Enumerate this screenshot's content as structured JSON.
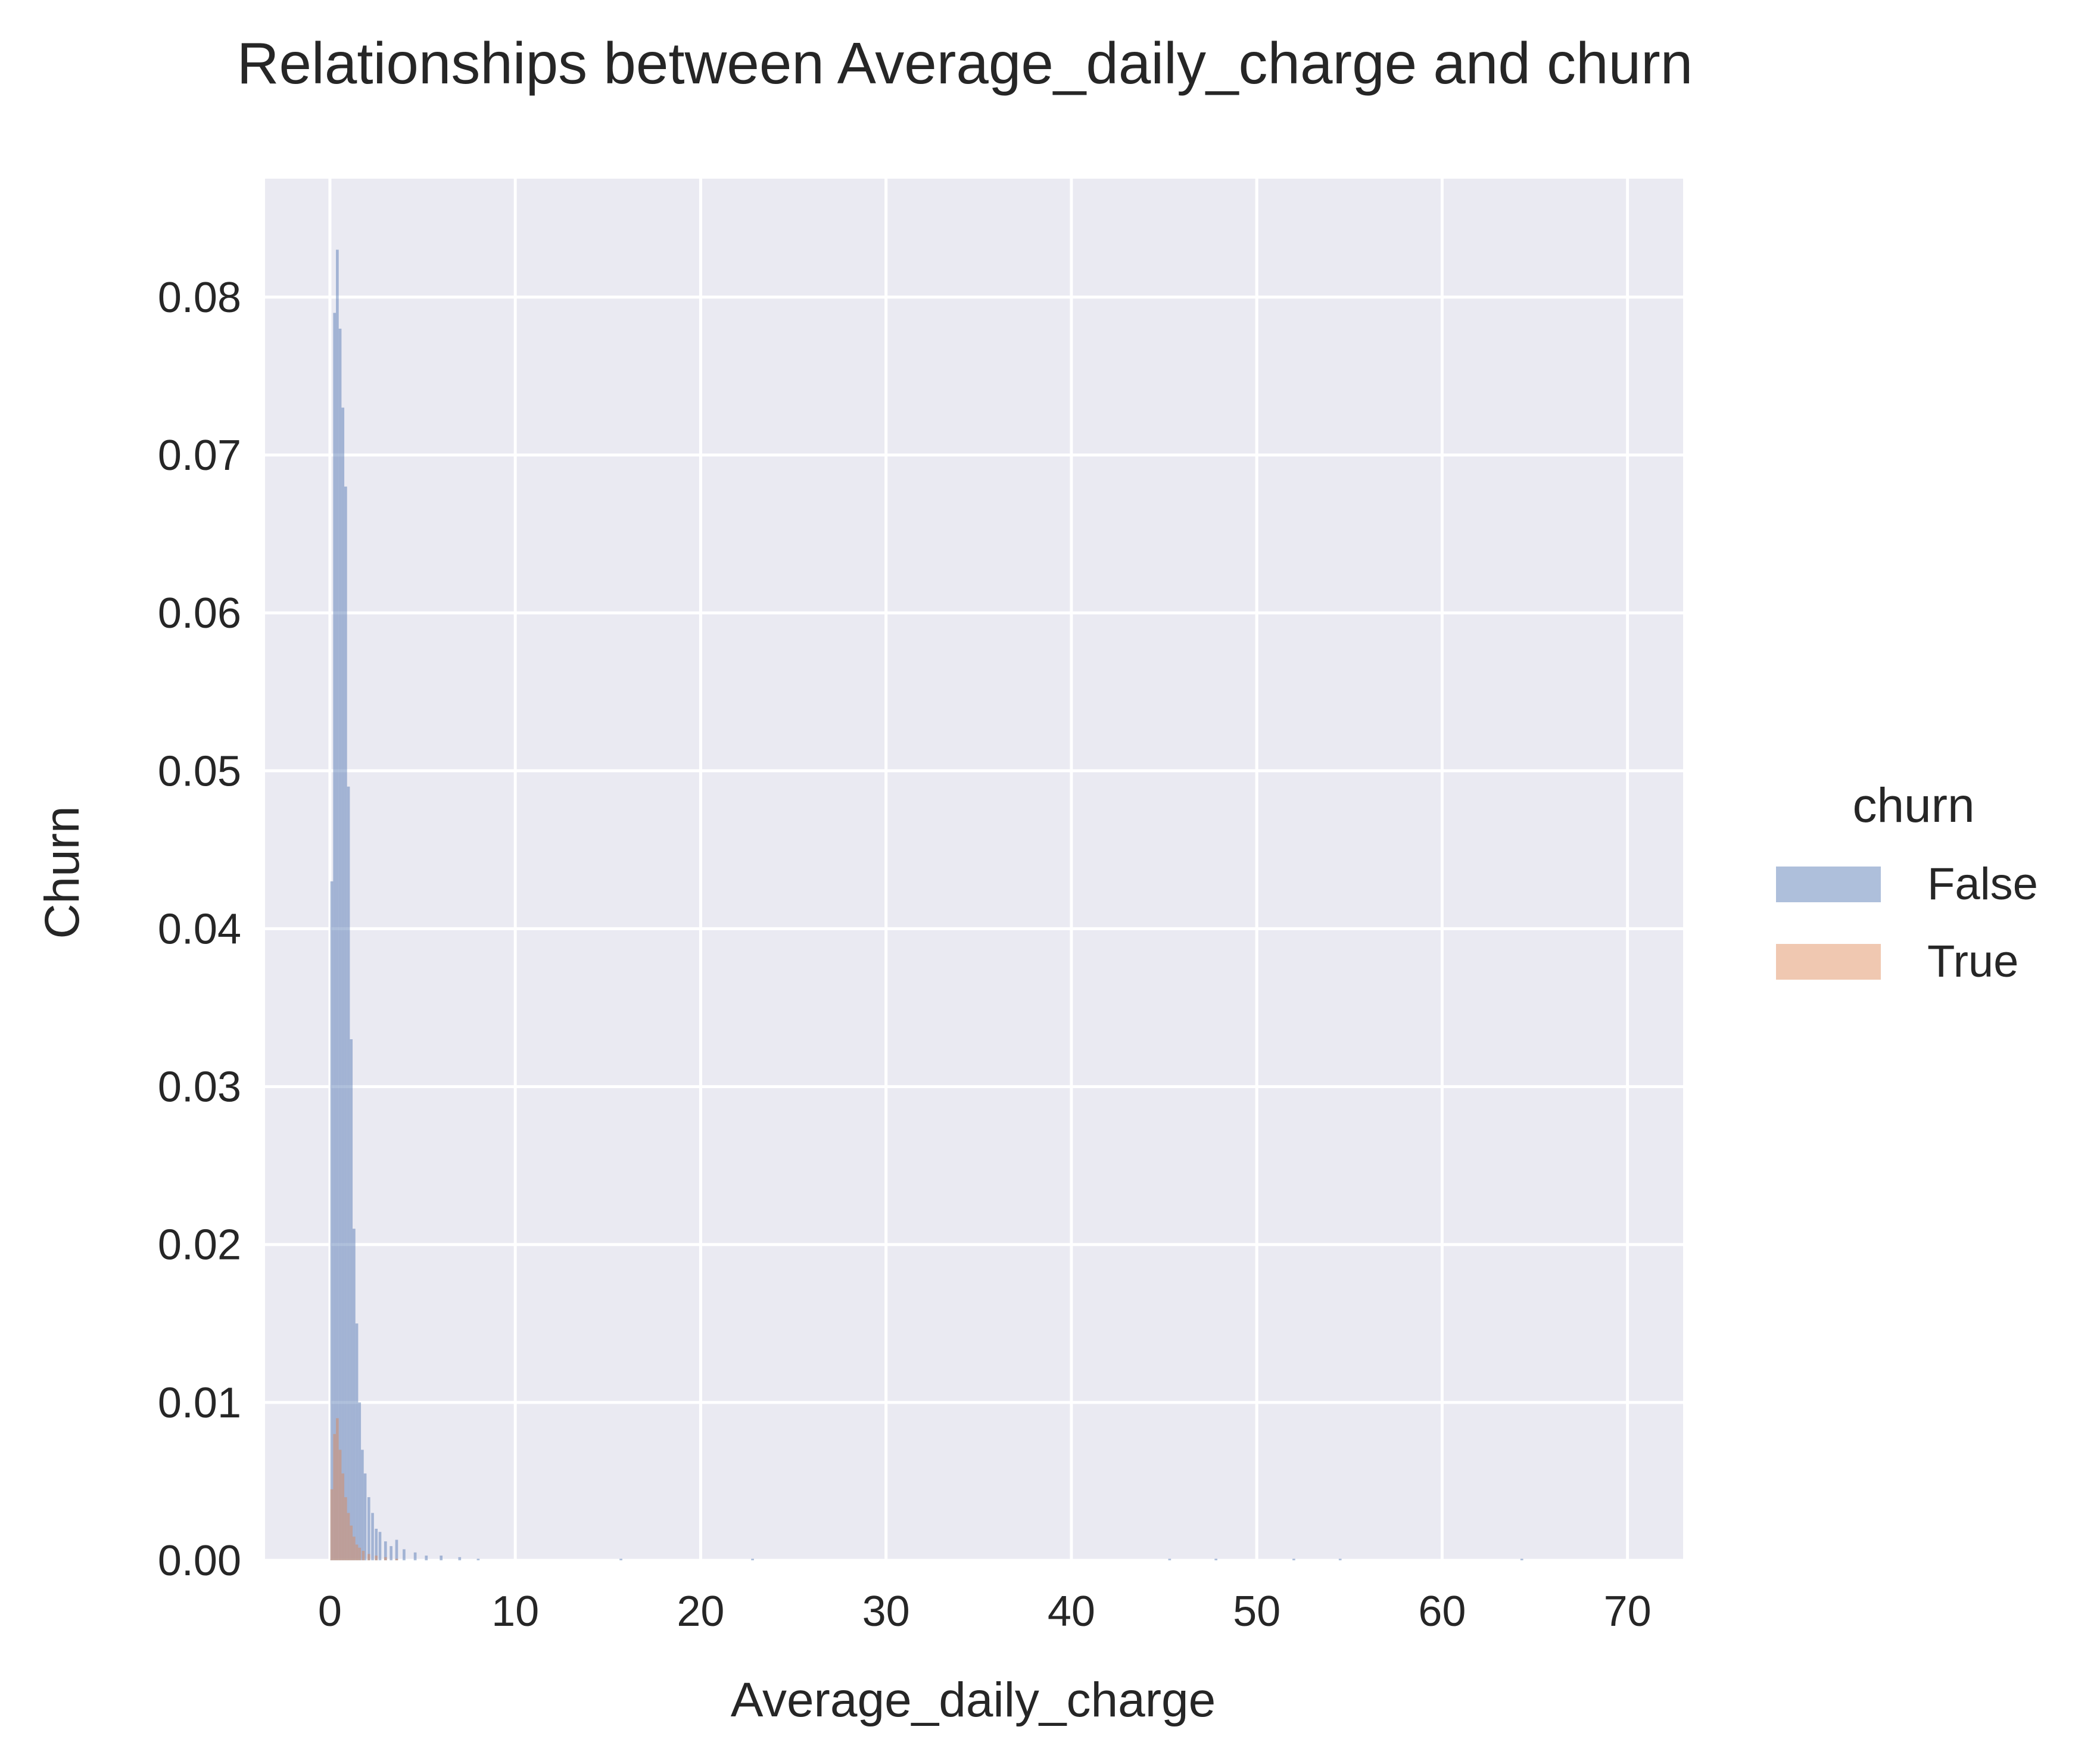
{
  "chart_data": {
    "type": "bar",
    "title": "Relationships between Average_daily_charge and churn",
    "xlabel": "Average_daily_charge",
    "ylabel": "Churn",
    "xlim": [
      -3.5,
      73.0
    ],
    "ylim": [
      0,
      0.0875
    ],
    "xticks": [
      0,
      10,
      20,
      30,
      40,
      50,
      60,
      70
    ],
    "xtick_labels": [
      "0",
      "10",
      "20",
      "30",
      "40",
      "50",
      "60",
      "70"
    ],
    "yticks": [
      0.0,
      0.01,
      0.02,
      0.03,
      0.04,
      0.05,
      0.06,
      0.07,
      0.08
    ],
    "ytick_labels": [
      "0.00",
      "0.01",
      "0.02",
      "0.03",
      "0.04",
      "0.05",
      "0.06",
      "0.07",
      "0.08"
    ],
    "grid": true,
    "legend": {
      "title": "churn",
      "placement": "right"
    },
    "background_color": "#eaeaf2",
    "grid_color": "#ffffff",
    "series": [
      {
        "name": "False",
        "color": "#4c72b0",
        "opacity": 0.45,
        "bins": [
          {
            "x": 0.1,
            "y": 0.043
          },
          {
            "x": 0.25,
            "y": 0.079
          },
          {
            "x": 0.4,
            "y": 0.083
          },
          {
            "x": 0.55,
            "y": 0.078
          },
          {
            "x": 0.7,
            "y": 0.073
          },
          {
            "x": 0.85,
            "y": 0.068
          },
          {
            "x": 1.0,
            "y": 0.049
          },
          {
            "x": 1.15,
            "y": 0.033
          },
          {
            "x": 1.3,
            "y": 0.021
          },
          {
            "x": 1.45,
            "y": 0.015
          },
          {
            "x": 1.6,
            "y": 0.01
          },
          {
            "x": 1.75,
            "y": 0.007
          },
          {
            "x": 1.9,
            "y": 0.0055
          },
          {
            "x": 2.1,
            "y": 0.004
          },
          {
            "x": 2.3,
            "y": 0.003
          },
          {
            "x": 2.5,
            "y": 0.002
          },
          {
            "x": 2.7,
            "y": 0.0018
          },
          {
            "x": 3.0,
            "y": 0.0012
          },
          {
            "x": 3.3,
            "y": 0.0009
          },
          {
            "x": 3.6,
            "y": 0.0013
          },
          {
            "x": 4.0,
            "y": 0.0007
          },
          {
            "x": 4.6,
            "y": 0.0005
          },
          {
            "x": 5.2,
            "y": 0.0003
          },
          {
            "x": 6.0,
            "y": 0.0003
          },
          {
            "x": 7.0,
            "y": 0.0002
          },
          {
            "x": 8.0,
            "y": 0.0001
          },
          {
            "x": 15.7,
            "y": 0.0001
          },
          {
            "x": 22.8,
            "y": 0.0001
          },
          {
            "x": 45.3,
            "y": 0.0001
          },
          {
            "x": 47.8,
            "y": 0.0001
          },
          {
            "x": 52.0,
            "y": 0.0001
          },
          {
            "x": 54.5,
            "y": 0.0001
          },
          {
            "x": 64.3,
            "y": 0.0001
          }
        ]
      },
      {
        "name": "True",
        "color": "#dd8452",
        "opacity": 0.45,
        "bins": [
          {
            "x": 0.1,
            "y": 0.0045
          },
          {
            "x": 0.25,
            "y": 0.008
          },
          {
            "x": 0.4,
            "y": 0.009
          },
          {
            "x": 0.55,
            "y": 0.007
          },
          {
            "x": 0.7,
            "y": 0.0055
          },
          {
            "x": 0.85,
            "y": 0.004
          },
          {
            "x": 1.0,
            "y": 0.003
          },
          {
            "x": 1.15,
            "y": 0.0022
          },
          {
            "x": 1.3,
            "y": 0.0015
          },
          {
            "x": 1.45,
            "y": 0.001
          },
          {
            "x": 1.6,
            "y": 0.0008
          },
          {
            "x": 1.8,
            "y": 0.0006
          },
          {
            "x": 2.1,
            "y": 0.0004
          },
          {
            "x": 2.5,
            "y": 0.0003
          },
          {
            "x": 3.0,
            "y": 0.0002
          },
          {
            "x": 3.6,
            "y": 0.0001
          }
        ]
      }
    ]
  }
}
